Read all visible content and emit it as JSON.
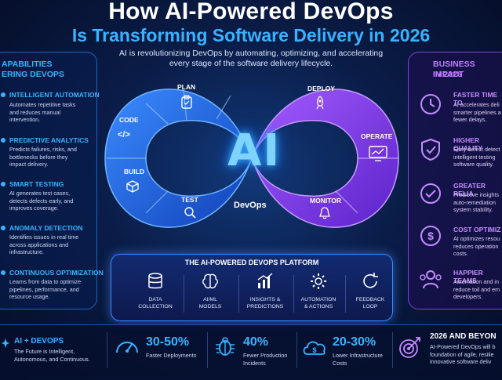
{
  "title": {
    "line1": "How AI-Powered DevOps",
    "line2": "Is Transforming Software Delivery in 2026"
  },
  "subtitle": "AI is revolutionizing DevOps by automating, optimizing, and accelerating every stage of the software delivery lifecycle.",
  "left_panel": {
    "heading_line1": "APABILITIES",
    "heading_line2": "ERING DEVOPS",
    "items": [
      {
        "title": "INTELLIGENT AUTOMATION",
        "desc": [
          "Automates repetitive tasks",
          "and reduces manual",
          "intervention."
        ]
      },
      {
        "title": "PREDICTIVE ANALYTICS",
        "desc": [
          "Predicts failures, risks, and",
          "bottlenecks before they",
          "impact delivery."
        ]
      },
      {
        "title": "SMART TESTING",
        "desc": [
          "AI generates test cases,",
          "detects defects early, and",
          "improves coverage."
        ]
      },
      {
        "title": "ANOMALY DETECTION",
        "desc": [
          "Identifies issues in real time",
          "across applications and",
          "infrastructure."
        ]
      },
      {
        "title": "CONTINUOUS OPTIMIZATION",
        "desc": [
          "Learns from data to optimize",
          "pipelines, performance, and",
          "resource usage."
        ]
      }
    ]
  },
  "right_panel": {
    "heading_line1": "BUSINESS IMPACT",
    "heading_line2": "IN 2026",
    "items": [
      {
        "title": "FASTER TIME TO",
        "desc": [
          "AI accelerates deli",
          "smarter pipelines a",
          "fewer delays."
        ],
        "icon": "clock-icon"
      },
      {
        "title": "HIGHER QUALITY",
        "desc": [
          "Early defect detect",
          "intelligent testing",
          "software quality."
        ],
        "icon": "shield-check-icon"
      },
      {
        "title": "GREATER RELIA",
        "desc": [
          "Predictive insights",
          "auto-remediation",
          "system stability."
        ],
        "icon": "check-circle-icon"
      },
      {
        "title": "COST OPTIMIZ",
        "desc": [
          "AI optimizes resou",
          "reduces operation",
          "costs."
        ],
        "icon": "dollar-icon"
      },
      {
        "title": "HAPPIER TEAMS",
        "desc": [
          "Automation and in",
          "reduce toil and em",
          "developers."
        ],
        "icon": "team-icon"
      }
    ]
  },
  "loop": {
    "segments": [
      "PLAN",
      "CODE",
      "BUILD",
      "TEST",
      "DEPLOY",
      "OPERATE",
      "MONITOR"
    ],
    "center": "AI",
    "center_label": "DevOps",
    "colors": {
      "left": "#1f6cf0",
      "right": "#8a3ff0"
    }
  },
  "platform": {
    "title": "THE AI-POWERED DEVOPS PLATFORM",
    "items": [
      {
        "label": [
          "DATA",
          "COLLECTION"
        ],
        "icon": "database-icon"
      },
      {
        "label": [
          "AI/ML",
          "MODELS"
        ],
        "icon": "brain-icon"
      },
      {
        "label": [
          "INSIGHTS &",
          "PREDICTIONS"
        ],
        "icon": "chart-icon"
      },
      {
        "label": [
          "AUTOMATION",
          "& ACTIONS"
        ],
        "icon": "gear-icon"
      },
      {
        "label": [
          "FEEDBACK",
          "LOOP"
        ],
        "icon": "refresh-icon"
      }
    ]
  },
  "bottom": {
    "ai_devops": {
      "title": "AI + DEVOPS",
      "desc": [
        "The Future is Intelligent,",
        "Autonomous, and Continuous."
      ]
    },
    "stats": [
      {
        "value": "30-50%",
        "label": [
          "Faster Deployments"
        ],
        "icon": "speedometer-icon"
      },
      {
        "value": "40%",
        "label": [
          "Fewer Production",
          "Incidents"
        ],
        "icon": "bug-icon"
      },
      {
        "value": "20-30%",
        "label": [
          "Lower Infrastructure",
          "Costs"
        ],
        "icon": "cloud-dollar-icon"
      }
    ],
    "beyond": {
      "title": "2026 AND BEYON",
      "desc": [
        "AI-Powered DevOps will b",
        "foundation of agile, resilie",
        "innovative software deliv"
      ]
    }
  }
}
